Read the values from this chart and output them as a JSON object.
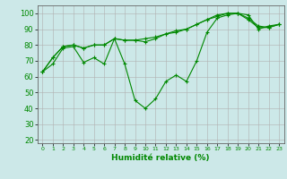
{
  "title": "",
  "xlabel": "Humidité relative (%)",
  "ylabel": "",
  "background_color": "#cce8e8",
  "grid_color": "#b0b0b0",
  "line_color": "#008800",
  "ylim": [
    18,
    105
  ],
  "xlim": [
    -0.5,
    23.5
  ],
  "yticks": [
    20,
    30,
    40,
    50,
    60,
    70,
    80,
    90,
    100
  ],
  "xticks": [
    0,
    1,
    2,
    3,
    4,
    5,
    6,
    7,
    8,
    9,
    10,
    11,
    12,
    13,
    14,
    15,
    16,
    17,
    18,
    19,
    20,
    21,
    22,
    23
  ],
  "series1": [
    63,
    68,
    78,
    79,
    69,
    72,
    68,
    84,
    68,
    45,
    40,
    46,
    57,
    61,
    57,
    70,
    88,
    97,
    99,
    100,
    99,
    90,
    92,
    93
  ],
  "series2": [
    63,
    72,
    79,
    80,
    78,
    80,
    80,
    84,
    83,
    83,
    82,
    84,
    87,
    88,
    90,
    93,
    96,
    98,
    100,
    100,
    97,
    92,
    91,
    93
  ],
  "series3": [
    63,
    72,
    79,
    80,
    78,
    80,
    80,
    84,
    83,
    83,
    84,
    85,
    87,
    89,
    90,
    93,
    96,
    99,
    100,
    100,
    96,
    91,
    91,
    93
  ]
}
